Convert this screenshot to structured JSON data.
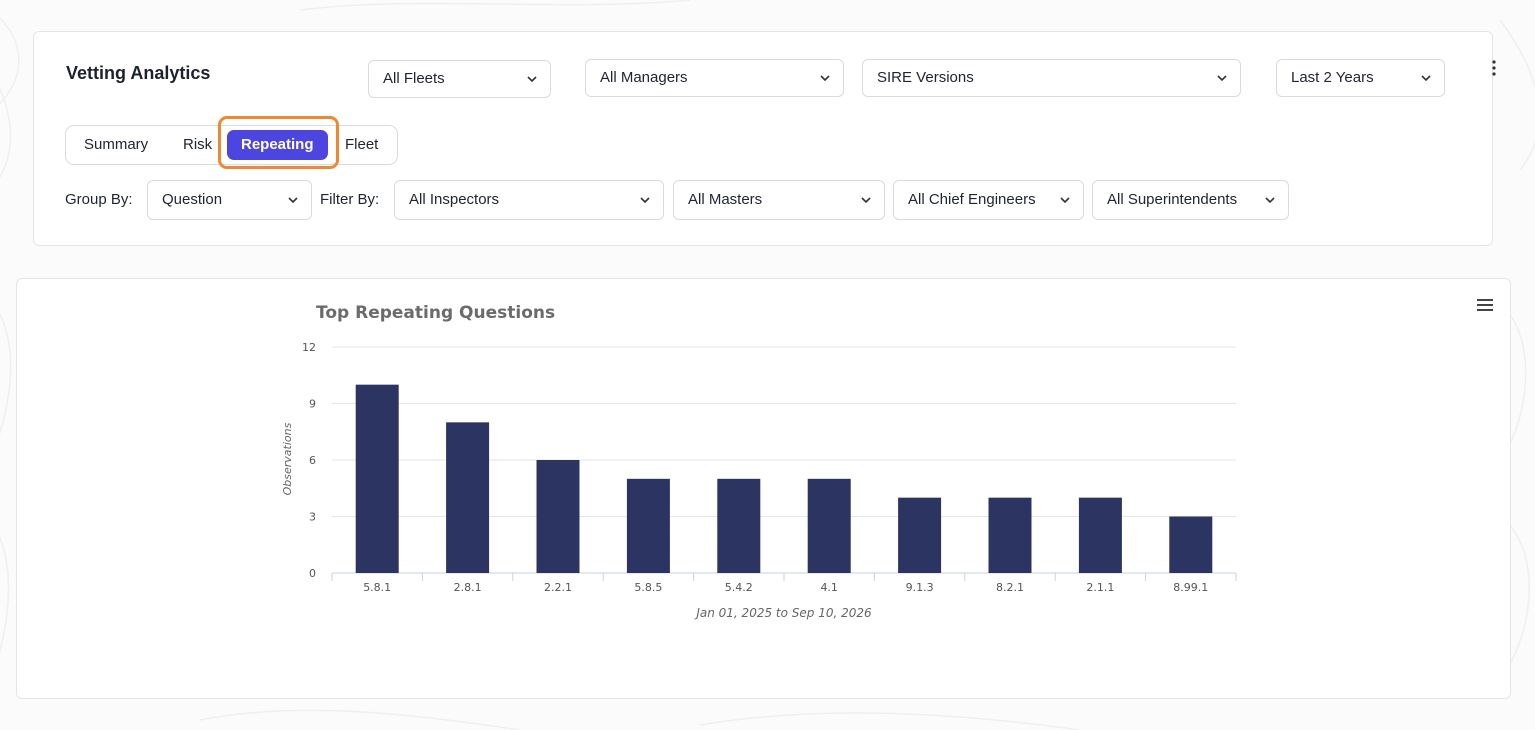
{
  "header": {
    "title": "Vetting Analytics",
    "fleet_select": "All Fleets",
    "manager_select": "All Managers",
    "sire_select": "SIRE Versions",
    "period_select": "Last 2 Years",
    "menu_icon": "vertical-dots-icon"
  },
  "tabs": [
    {
      "label": "Summary",
      "active": false
    },
    {
      "label": "Risk",
      "active": false
    },
    {
      "label": "Repeating",
      "active": true
    },
    {
      "label": "Fleet",
      "active": false
    }
  ],
  "filters": {
    "group_by_label": "Group By:",
    "group_by_value": "Question",
    "filter_by_label": "Filter By:",
    "inspectors": "All Inspectors",
    "masters": "All Masters",
    "chief_engineers": "All Chief Engineers",
    "superintendents": "All Superintendents"
  },
  "colors": {
    "accent": "#4d45e0",
    "highlight": "#f2872e",
    "bar": "#2c3461"
  },
  "chart_menu_icon": "hamburger-icon",
  "chart_data": {
    "type": "bar",
    "title": "Top Repeating Questions",
    "xlabel": "Jan 01, 2025 to Sep 10, 2026",
    "ylabel": "Observations",
    "ylim": [
      0,
      12
    ],
    "yticks": [
      0,
      3,
      6,
      9,
      12
    ],
    "categories": [
      "5.8.1",
      "2.8.1",
      "2.2.1",
      "5.8.5",
      "5.4.2",
      "4.1",
      "9.1.3",
      "8.2.1",
      "2.1.1",
      "8.99.1"
    ],
    "values": [
      10,
      8,
      6,
      5,
      5,
      5,
      4,
      4,
      4,
      3
    ],
    "grid": true,
    "legend": false
  }
}
